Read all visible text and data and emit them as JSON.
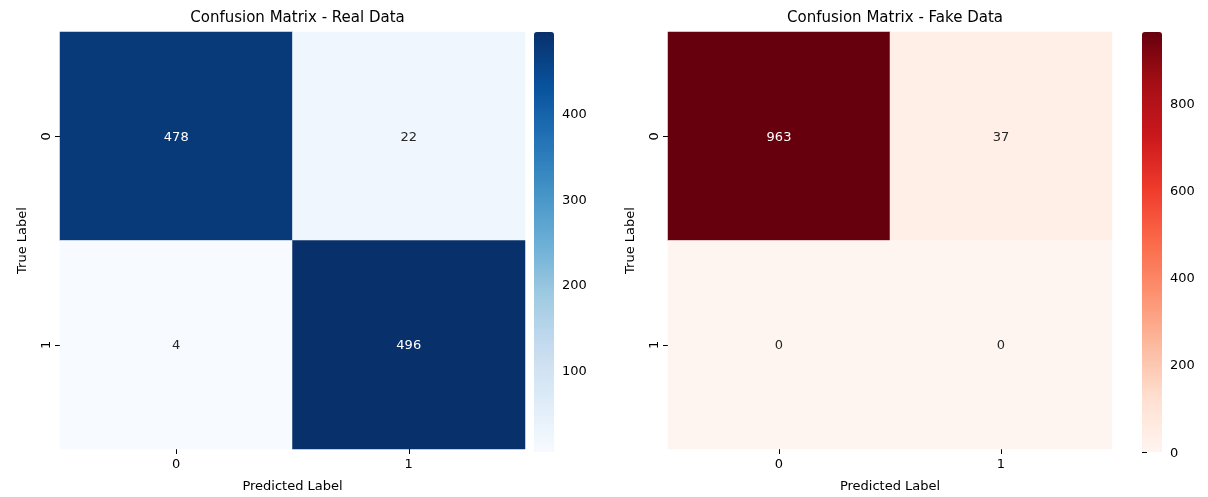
{
  "chart_data": [
    {
      "type": "heatmap",
      "title": "Confusion Matrix - Real Data",
      "xlabel": "Predicted Label",
      "ylabel": "True Label",
      "categories": [
        "0",
        "1"
      ],
      "y_categories": [
        "0",
        "1"
      ],
      "cells": [
        [
          478,
          22
        ],
        [
          4,
          496
        ]
      ],
      "data_labels": true,
      "clim": [
        4,
        496
      ],
      "cticks": [
        100,
        200,
        300,
        400
      ]
    },
    {
      "type": "heatmap",
      "title": "Confusion Matrix - Fake Data",
      "xlabel": "Predicted Label",
      "ylabel": "True Label",
      "categories": [
        "0",
        "1"
      ],
      "y_categories": [
        "0",
        "1"
      ],
      "cells": [
        [
          963,
          37
        ],
        [
          0,
          0
        ]
      ],
      "data_labels": true,
      "clim": [
        0,
        963
      ],
      "cticks": [
        0,
        200,
        400,
        600,
        800
      ]
    }
  ]
}
